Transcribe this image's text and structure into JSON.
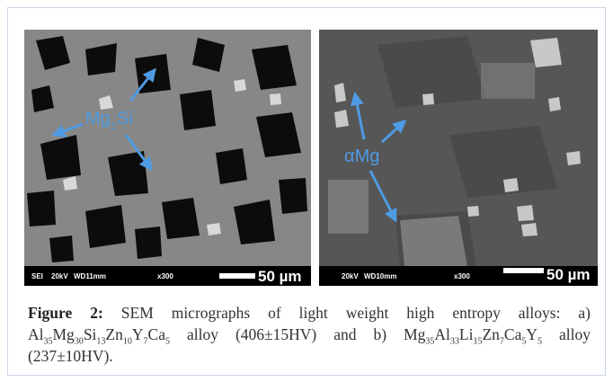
{
  "figure": {
    "panels": [
      {
        "label": [
          "Mg",
          "2",
          "Si"
        ],
        "info": [
          "SEI",
          "20kV",
          "WD11mm",
          "x300"
        ],
        "scale": "50 µm"
      },
      {
        "label": [
          "αMg"
        ],
        "info": [
          "20kV",
          "WD10mm",
          "x300"
        ],
        "scale": "50 µm"
      }
    ],
    "caption": {
      "label": "Figure 2:",
      "text_before": "SEM micrographs of light weight high entropy alloys: a)",
      "alloy_a": {
        "elements": [
          "Al",
          "Mg",
          "Si",
          "Zn",
          "Y",
          "Ca"
        ],
        "counts": [
          "35",
          "30",
          "13",
          "10",
          "7",
          "5"
        ]
      },
      "text_middle": "alloy (406±15HV) and b)",
      "alloy_b": {
        "elements": [
          "Mg",
          "Al",
          "Li",
          "Zn",
          "Ca",
          "Y"
        ],
        "counts": [
          "35",
          "33",
          "15",
          "7",
          "5",
          "5"
        ]
      },
      "text_after": "alloy (237±10HV)."
    }
  }
}
